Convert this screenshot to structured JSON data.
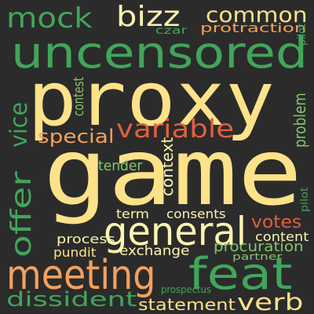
{
  "palette": {
    "background": "#2b2b2b",
    "yellow": "#fde28a",
    "light_yellow": "#fdf3b0",
    "green": "#41a55a",
    "light_green": "#84c66b",
    "orange": "#f4a05e",
    "red_orange": "#e0603f"
  },
  "words": [
    {
      "id": "proxy",
      "text": "proxy",
      "color": "#fde28a",
      "vertical": false
    },
    {
      "id": "game",
      "text": "game",
      "color": "#fde28a",
      "vertical": false
    },
    {
      "id": "uncensored",
      "text": "uncensored",
      "color": "#41a55a",
      "vertical": false
    },
    {
      "id": "mock",
      "text": "mock",
      "color": "#41a55a",
      "vertical": false
    },
    {
      "id": "bizz",
      "text": "bizz",
      "color": "#fdf3b0",
      "vertical": false
    },
    {
      "id": "common",
      "text": "common",
      "color": "#fde28a",
      "vertical": false
    },
    {
      "id": "czar",
      "text": "czar",
      "color": "#41a55a",
      "vertical": false
    },
    {
      "id": "protraction",
      "text": "protraction",
      "color": "#f4a05e",
      "vertical": false
    },
    {
      "id": "pilot",
      "text": "pilot",
      "color": "#41a55a",
      "vertical": true
    },
    {
      "id": "vice",
      "text": "vice",
      "color": "#41a55a",
      "vertical": true
    },
    {
      "id": "contest",
      "text": "contest",
      "color": "#84c66b",
      "vertical": true
    },
    {
      "id": "problem",
      "text": "problem",
      "color": "#84c66b",
      "vertical": true
    },
    {
      "id": "special",
      "text": "special",
      "color": "#f4a05e",
      "vertical": false
    },
    {
      "id": "variable",
      "text": "variable",
      "color": "#e0603f",
      "vertical": false
    },
    {
      "id": "offer",
      "text": "offer",
      "color": "#41a55a",
      "vertical": true
    },
    {
      "id": "context",
      "text": "context",
      "color": "#fdf3b0",
      "vertical": true
    },
    {
      "id": "tender",
      "text": "tender",
      "color": "#84c66b",
      "vertical": false
    },
    {
      "id": "pilot_right",
      "text": "pilot",
      "color": "#41a55a",
      "vertical": true
    },
    {
      "id": "general",
      "text": "general",
      "color": "#fdf3b0",
      "vertical": false
    },
    {
      "id": "votes",
      "text": "votes",
      "color": "#e0603f",
      "vertical": false
    },
    {
      "id": "term",
      "text": "term",
      "color": "#fdf3b0",
      "vertical": false
    },
    {
      "id": "consents",
      "text": "consents",
      "color": "#fdf3b0",
      "vertical": false
    },
    {
      "id": "content",
      "text": "content",
      "color": "#fdf3b0",
      "vertical": false
    },
    {
      "id": "process",
      "text": "process",
      "color": "#fdf3b0",
      "vertical": false
    },
    {
      "id": "procuration",
      "text": "procuration",
      "color": "#84c66b",
      "vertical": false
    },
    {
      "id": "pundit",
      "text": "pundit",
      "color": "#fde28a",
      "vertical": false
    },
    {
      "id": "exchange",
      "text": "exchange",
      "color": "#fdf3b0",
      "vertical": false
    },
    {
      "id": "partner",
      "text": "partner",
      "color": "#84c66b",
      "vertical": false
    },
    {
      "id": "meeting",
      "text": "meeting",
      "color": "#f4a05e",
      "vertical": false
    },
    {
      "id": "feat",
      "text": "feat",
      "color": "#41a55a",
      "vertical": false
    },
    {
      "id": "prospectus",
      "text": "prospectus",
      "color": "#41a55a",
      "vertical": false
    },
    {
      "id": "dissident",
      "text": "dissident",
      "color": "#41a55a",
      "vertical": false
    },
    {
      "id": "verb",
      "text": "verb",
      "color": "#fde28a",
      "vertical": false
    },
    {
      "id": "statement",
      "text": "statement",
      "color": "#fde28a",
      "vertical": false
    }
  ]
}
